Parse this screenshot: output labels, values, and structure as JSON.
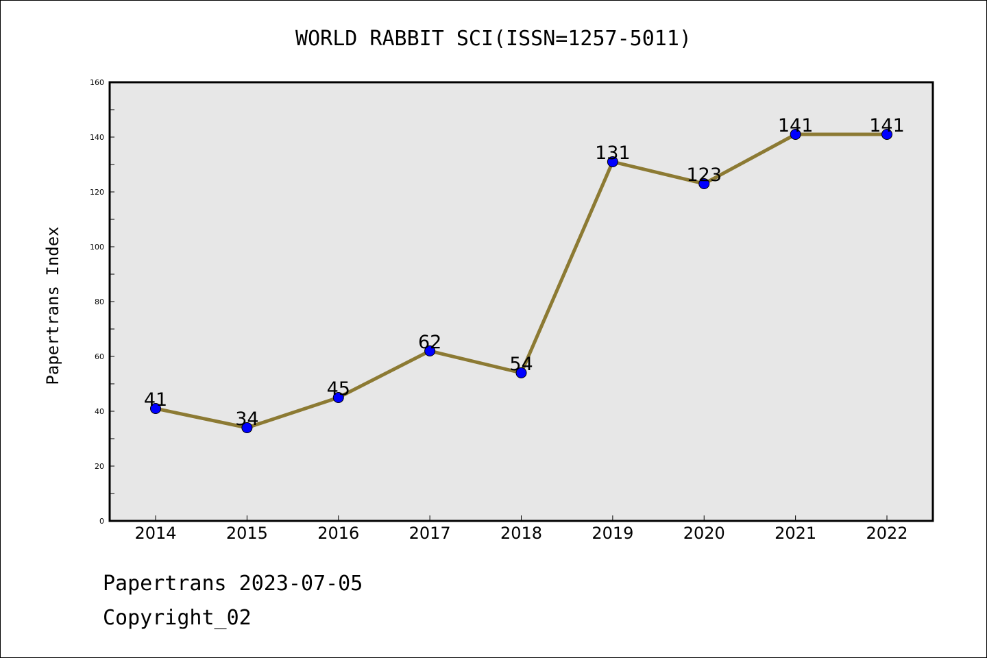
{
  "chart_data": {
    "type": "line",
    "title": "WORLD RABBIT SCI(ISSN=1257-5011)",
    "xlabel": "",
    "ylabel": "Papertrans Index",
    "categories": [
      "2014",
      "2015",
      "2016",
      "2017",
      "2018",
      "2019",
      "2020",
      "2021",
      "2022"
    ],
    "values": [
      41,
      34,
      45,
      62,
      54,
      131,
      123,
      141,
      141
    ],
    "ylim": [
      0,
      160
    ],
    "yticks": [
      0,
      20,
      40,
      60,
      80,
      100,
      120,
      140,
      160
    ],
    "grid": false,
    "legend": "none",
    "colors": {
      "line": "#8c7a33",
      "marker": "#0000ff",
      "plot_background": "#e7e7e7"
    }
  },
  "footer": {
    "line1": "Papertrans 2023-07-05",
    "line2": "Copyright_02"
  }
}
